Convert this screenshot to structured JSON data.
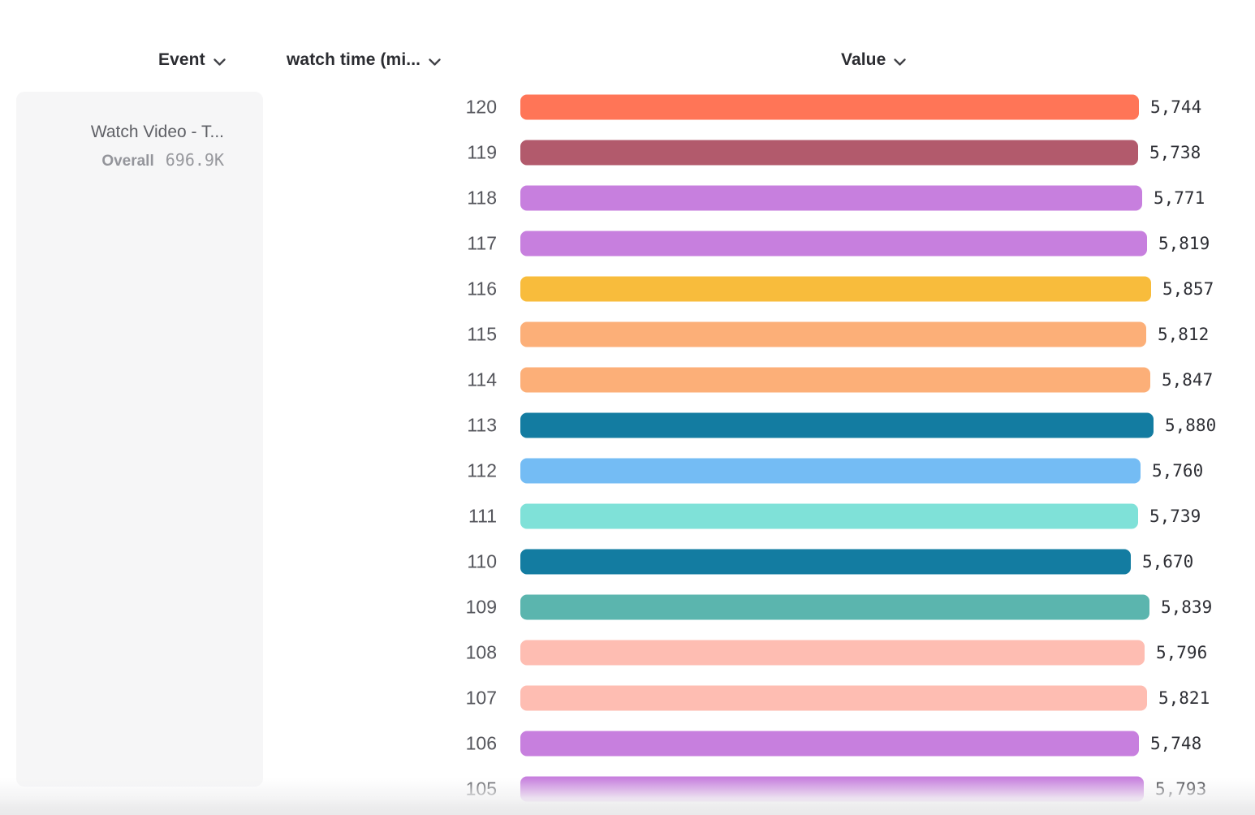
{
  "header": {
    "event_column_label": "Event",
    "xaxis_column_label": "watch time (mi...",
    "value_column_label": "Value"
  },
  "event_panel": {
    "title": "Watch Video - T...",
    "metric_label": "Overall",
    "metric_value": "696.9K"
  },
  "chart_data": {
    "type": "bar",
    "orientation": "horizontal",
    "title": "",
    "xlabel": "Value",
    "ylabel": "watch time (mi...",
    "xlim": [
      0,
      5880
    ],
    "grid": false,
    "categories": [
      "120",
      "119",
      "118",
      "117",
      "116",
      "115",
      "114",
      "113",
      "112",
      "111",
      "110",
      "109",
      "108",
      "107",
      "106",
      "105"
    ],
    "values": [
      5744,
      5738,
      5771,
      5819,
      5857,
      5812,
      5847,
      5880,
      5760,
      5739,
      5670,
      5839,
      5796,
      5821,
      5748,
      5793
    ],
    "value_labels": [
      "5,744",
      "5,738",
      "5,771",
      "5,819",
      "5,857",
      "5,812",
      "5,847",
      "5,880",
      "5,760",
      "5,739",
      "5,670",
      "5,839",
      "5,796",
      "5,821",
      "5,748",
      "5,793"
    ],
    "bar_colors": [
      "#FF7557",
      "#B25A6C",
      "#C77FDE",
      "#C77FDE",
      "#F8BC3C",
      "#FCAF78",
      "#FCAF78",
      "#137CA1",
      "#74BCF4",
      "#7FE1D8",
      "#137CA1",
      "#5BB5AE",
      "#FEBDB2",
      "#FEBDB2",
      "#C77FDE",
      "#C77FDE"
    ]
  },
  "colors": {
    "panel_bg": "#f6f6f7",
    "header_text": "#2b2c31",
    "row_label_text": "#55565c",
    "value_text": "#2e2f35"
  }
}
